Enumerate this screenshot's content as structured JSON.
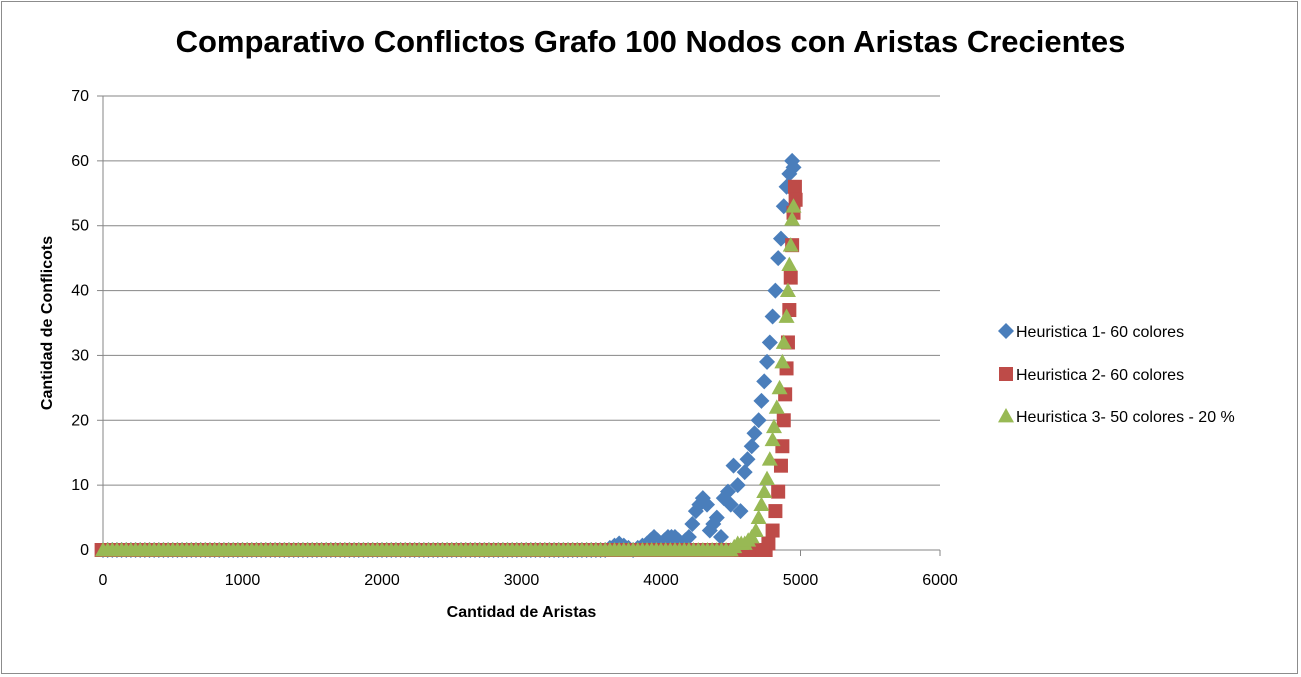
{
  "chart_data": {
    "type": "scatter",
    "title": "Comparativo Conflictos Grafo 100 Nodos con Aristas Crecientes",
    "xlabel": "Cantidad de Aristas",
    "ylabel": "Cantidad de Conflicots",
    "xlim": [
      0,
      6000
    ],
    "ylim": [
      0,
      70
    ],
    "xticks": [
      0,
      1000,
      2000,
      3000,
      4000,
      5000,
      6000
    ],
    "yticks": [
      0,
      10,
      20,
      30,
      40,
      50,
      60,
      70
    ],
    "grid": "horizontal",
    "legend_position": "right",
    "series": [
      {
        "name": "Heuristica 1- 60 colores",
        "color": "#4a7ebb",
        "marker": "diamond",
        "points": [
          [
            0,
            0
          ],
          [
            200,
            0
          ],
          [
            400,
            0
          ],
          [
            600,
            0
          ],
          [
            800,
            0
          ],
          [
            1000,
            0
          ],
          [
            1200,
            0
          ],
          [
            1400,
            0
          ],
          [
            1600,
            0
          ],
          [
            1800,
            0
          ],
          [
            2000,
            0
          ],
          [
            2200,
            0
          ],
          [
            2400,
            0
          ],
          [
            2600,
            0
          ],
          [
            2800,
            0
          ],
          [
            3000,
            0
          ],
          [
            3200,
            0
          ],
          [
            3400,
            0
          ],
          [
            3600,
            0
          ],
          [
            3700,
            1
          ],
          [
            3800,
            0
          ],
          [
            3900,
            1
          ],
          [
            3950,
            2
          ],
          [
            4000,
            1
          ],
          [
            4050,
            2
          ],
          [
            4100,
            2
          ],
          [
            4150,
            1
          ],
          [
            4200,
            2
          ],
          [
            4250,
            6
          ],
          [
            4300,
            8
          ],
          [
            4330,
            7
          ],
          [
            4350,
            3
          ],
          [
            4400,
            5
          ],
          [
            4430,
            2
          ],
          [
            4450,
            8
          ],
          [
            4480,
            9
          ],
          [
            4500,
            7
          ],
          [
            4520,
            13
          ],
          [
            4550,
            10
          ],
          [
            4570,
            6
          ],
          [
            4600,
            12
          ],
          [
            4620,
            14
          ],
          [
            4650,
            16
          ],
          [
            4670,
            18
          ],
          [
            4700,
            20
          ],
          [
            4720,
            23
          ],
          [
            4740,
            26
          ],
          [
            4760,
            29
          ],
          [
            4780,
            32
          ],
          [
            4800,
            36
          ],
          [
            4820,
            40
          ],
          [
            4840,
            45
          ],
          [
            4860,
            48
          ],
          [
            4880,
            53
          ],
          [
            4900,
            56
          ],
          [
            4920,
            58
          ],
          [
            4940,
            60
          ],
          [
            4950,
            59
          ]
        ]
      },
      {
        "name": "Heuristica 2- 60 colores",
        "color": "#be4b48",
        "marker": "square",
        "points": [
          [
            -10,
            0
          ],
          [
            200,
            0
          ],
          [
            400,
            0
          ],
          [
            600,
            0
          ],
          [
            800,
            0
          ],
          [
            1000,
            0
          ],
          [
            1200,
            0
          ],
          [
            1400,
            0
          ],
          [
            1600,
            0
          ],
          [
            1800,
            0
          ],
          [
            2000,
            0
          ],
          [
            2200,
            0
          ],
          [
            2400,
            0
          ],
          [
            2600,
            0
          ],
          [
            2800,
            0
          ],
          [
            3000,
            0
          ],
          [
            3200,
            0
          ],
          [
            3400,
            0
          ],
          [
            3600,
            0
          ],
          [
            3800,
            0
          ],
          [
            4000,
            0
          ],
          [
            4200,
            0
          ],
          [
            4400,
            0
          ],
          [
            4600,
            0
          ],
          [
            4700,
            0
          ],
          [
            4750,
            0
          ],
          [
            4770,
            1
          ],
          [
            4800,
            3
          ],
          [
            4820,
            6
          ],
          [
            4840,
            9
          ],
          [
            4860,
            13
          ],
          [
            4870,
            16
          ],
          [
            4880,
            20
          ],
          [
            4890,
            24
          ],
          [
            4900,
            28
          ],
          [
            4910,
            32
          ],
          [
            4920,
            37
          ],
          [
            4930,
            42
          ],
          [
            4940,
            47
          ],
          [
            4950,
            52
          ],
          [
            4960,
            56
          ],
          [
            4965,
            54
          ]
        ]
      },
      {
        "name": "Heuristica 3- 50 colores - 20 %",
        "color": "#98b954",
        "marker": "triangle",
        "points": [
          [
            0,
            0
          ],
          [
            200,
            0
          ],
          [
            400,
            0
          ],
          [
            600,
            0
          ],
          [
            800,
            0
          ],
          [
            1000,
            0
          ],
          [
            1200,
            0
          ],
          [
            1400,
            0
          ],
          [
            1600,
            0
          ],
          [
            1800,
            0
          ],
          [
            2000,
            0
          ],
          [
            2200,
            0
          ],
          [
            2400,
            0
          ],
          [
            2600,
            0
          ],
          [
            2800,
            0
          ],
          [
            3000,
            0
          ],
          [
            3200,
            0
          ],
          [
            3400,
            0
          ],
          [
            3600,
            0
          ],
          [
            3800,
            0
          ],
          [
            4000,
            0
          ],
          [
            4200,
            0
          ],
          [
            4400,
            0
          ],
          [
            4500,
            0
          ],
          [
            4550,
            1
          ],
          [
            4600,
            1
          ],
          [
            4650,
            2
          ],
          [
            4680,
            3
          ],
          [
            4700,
            5
          ],
          [
            4720,
            7
          ],
          [
            4740,
            9
          ],
          [
            4760,
            11
          ],
          [
            4780,
            14
          ],
          [
            4800,
            17
          ],
          [
            4810,
            19
          ],
          [
            4830,
            22
          ],
          [
            4850,
            25
          ],
          [
            4870,
            29
          ],
          [
            4880,
            32
          ],
          [
            4900,
            36
          ],
          [
            4910,
            40
          ],
          [
            4920,
            44
          ],
          [
            4930,
            47
          ],
          [
            4940,
            51
          ],
          [
            4950,
            53
          ]
        ]
      }
    ]
  }
}
